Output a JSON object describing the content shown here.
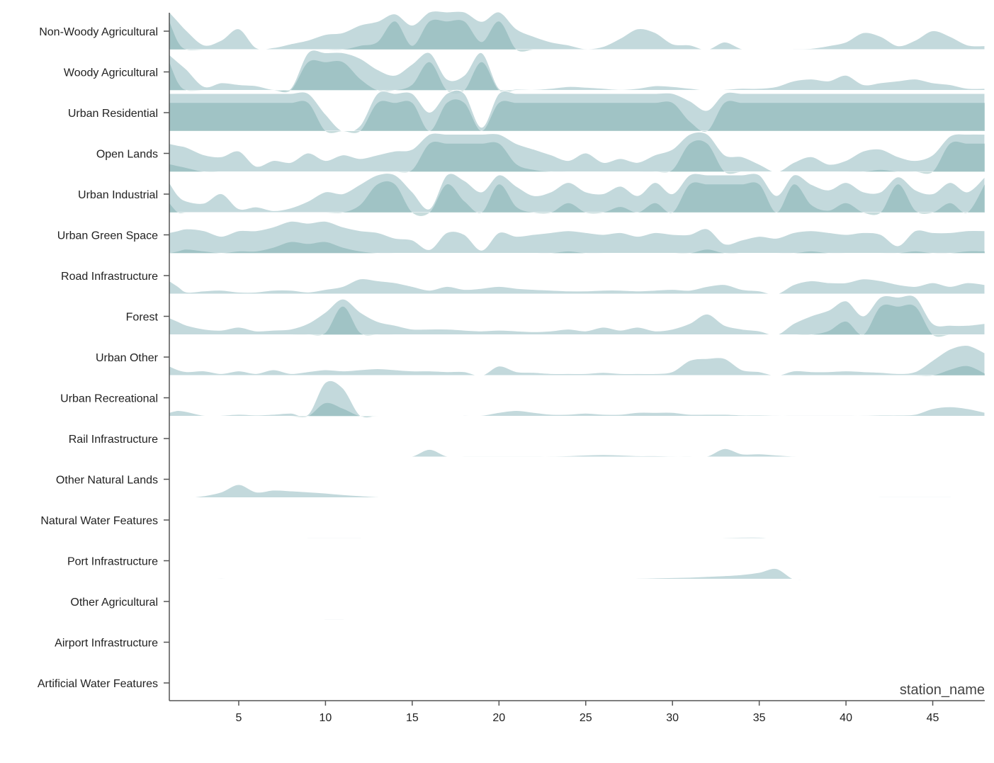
{
  "chart_data": {
    "type": "area",
    "subtype": "ridgeline",
    "title": "",
    "xlabel": "station_name",
    "ylabel": "",
    "xlim": [
      1,
      48
    ],
    "xticks": [
      5,
      10,
      15,
      20,
      25,
      30,
      35,
      40,
      45
    ],
    "categories": [
      "Non-Woody Agricultural",
      "Woody Agricultural",
      "Urban Residential",
      "Open Lands",
      "Urban Industrial",
      "Urban Green Space",
      "Road Infrastructure",
      "Forest",
      "Urban Other",
      "Urban Recreational",
      "Rail Infrastructure",
      "Other Natural Lands",
      "Natural Water Features",
      "Port Infrastructure",
      "Other Agricultural",
      "Airport Infrastructure",
      "Artificial Water Features"
    ],
    "x": [
      1,
      1.5,
      2,
      3,
      4,
      5,
      6,
      7,
      8,
      9,
      10,
      11,
      12,
      13,
      14,
      15,
      16,
      17,
      18,
      19,
      20,
      21,
      22,
      23,
      24,
      25,
      26,
      27,
      28,
      29,
      30,
      31,
      32,
      33,
      34,
      35,
      36,
      37,
      38,
      39,
      40,
      41,
      42,
      43,
      44,
      45,
      46,
      47,
      48
    ],
    "series": [
      {
        "values": [
          1.0,
          0.75,
          0.5,
          0.12,
          0.25,
          0.55,
          0.05,
          0.05,
          0.15,
          0.25,
          0.4,
          0.45,
          0.65,
          0.75,
          0.95,
          0.65,
          1.0,
          1.0,
          1.0,
          0.75,
          1.0,
          0.55,
          0.35,
          0.2,
          0.12,
          0.02,
          0.08,
          0.3,
          0.55,
          0.45,
          0.15,
          0.12,
          0.0,
          0.2,
          0.02,
          0.0,
          0.0,
          0.02,
          0.03,
          0.1,
          0.2,
          0.45,
          0.35,
          0.1,
          0.25,
          0.5,
          0.35,
          0.12,
          0.1
        ]
      },
      {
        "values": [
          0.95,
          0.75,
          0.55,
          0.1,
          0.2,
          0.15,
          0.12,
          0.02,
          0.05,
          1.0,
          1.0,
          1.0,
          0.85,
          0.55,
          0.4,
          0.7,
          1.0,
          0.3,
          0.4,
          1.0,
          0.05,
          0.03,
          0.02,
          0.05,
          0.1,
          0.08,
          0.05,
          0.02,
          0.05,
          0.12,
          0.1,
          0.05,
          0.0,
          0.02,
          0.05,
          0.05,
          0.1,
          0.25,
          0.3,
          0.25,
          0.4,
          0.15,
          0.2,
          0.25,
          0.3,
          0.2,
          0.15,
          0.05,
          0.05
        ]
      },
      {
        "values": [
          1.0,
          1.0,
          1.0,
          1.0,
          1.0,
          1.0,
          1.0,
          1.0,
          1.0,
          1.0,
          0.45,
          0.0,
          0.15,
          1.0,
          1.0,
          1.0,
          0.5,
          1.0,
          1.0,
          0.1,
          1.0,
          1.0,
          1.0,
          1.0,
          1.0,
          1.0,
          1.0,
          1.0,
          1.0,
          1.0,
          1.0,
          0.8,
          0.55,
          1.0,
          1.0,
          1.0,
          1.0,
          1.0,
          1.0,
          1.0,
          1.0,
          1.0,
          1.0,
          1.0,
          1.0,
          1.0,
          1.0,
          1.0,
          1.0
        ]
      },
      {
        "values": [
          0.75,
          0.7,
          0.65,
          0.45,
          0.4,
          0.55,
          0.15,
          0.3,
          0.25,
          0.5,
          0.3,
          0.45,
          0.35,
          0.45,
          0.55,
          0.6,
          1.0,
          1.0,
          1.0,
          1.0,
          1.0,
          0.75,
          0.6,
          0.45,
          0.3,
          0.5,
          0.25,
          0.35,
          0.25,
          0.45,
          0.6,
          1.0,
          1.0,
          0.45,
          0.4,
          0.2,
          0.0,
          0.25,
          0.4,
          0.2,
          0.3,
          0.55,
          0.6,
          0.4,
          0.3,
          0.45,
          0.95,
          1.0,
          1.0
        ]
      },
      {
        "values": [
          0.8,
          0.45,
          0.3,
          0.25,
          0.5,
          0.1,
          0.15,
          0.05,
          0.12,
          0.3,
          0.55,
          0.5,
          0.75,
          1.0,
          1.0,
          0.55,
          0.1,
          1.0,
          0.85,
          0.55,
          1.0,
          0.7,
          0.45,
          0.55,
          0.8,
          0.55,
          0.5,
          0.7,
          0.45,
          0.8,
          0.5,
          1.0,
          1.0,
          1.0,
          1.0,
          1.0,
          0.45,
          1.0,
          0.75,
          0.6,
          0.8,
          0.55,
          0.55,
          0.95,
          0.6,
          0.5,
          0.8,
          0.55,
          0.95
        ]
      },
      {
        "values": [
          0.55,
          0.6,
          0.65,
          0.6,
          0.45,
          0.6,
          0.6,
          0.7,
          0.85,
          0.8,
          0.85,
          0.7,
          0.6,
          0.55,
          0.4,
          0.35,
          0.1,
          0.55,
          0.5,
          0.08,
          0.55,
          0.45,
          0.5,
          0.55,
          0.6,
          0.55,
          0.5,
          0.55,
          0.45,
          0.55,
          0.5,
          0.5,
          0.65,
          0.25,
          0.35,
          0.45,
          0.4,
          0.55,
          0.6,
          0.55,
          0.5,
          0.55,
          0.5,
          0.2,
          0.6,
          0.55,
          0.55,
          0.6,
          0.6
        ]
      },
      {
        "values": [
          0.35,
          0.2,
          0.05,
          0.08,
          0.1,
          0.05,
          0.05,
          0.1,
          0.1,
          0.05,
          0.12,
          0.2,
          0.4,
          0.35,
          0.3,
          0.2,
          0.1,
          0.2,
          0.12,
          0.15,
          0.2,
          0.15,
          0.12,
          0.1,
          0.08,
          0.08,
          0.1,
          0.1,
          0.08,
          0.1,
          0.12,
          0.1,
          0.2,
          0.25,
          0.12,
          0.08,
          0.0,
          0.25,
          0.35,
          0.3,
          0.3,
          0.4,
          0.35,
          0.25,
          0.2,
          0.3,
          0.2,
          0.3,
          0.25
        ]
      },
      {
        "values": [
          0.45,
          0.35,
          0.25,
          0.15,
          0.12,
          0.2,
          0.1,
          0.12,
          0.15,
          0.3,
          0.6,
          0.95,
          0.6,
          0.35,
          0.25,
          0.15,
          0.15,
          0.15,
          0.12,
          0.1,
          0.12,
          0.1,
          0.08,
          0.1,
          0.15,
          0.1,
          0.2,
          0.12,
          0.2,
          0.1,
          0.15,
          0.3,
          0.55,
          0.25,
          0.15,
          0.1,
          0.0,
          0.3,
          0.5,
          0.65,
          0.9,
          0.5,
          1.0,
          1.0,
          1.0,
          0.3,
          0.25,
          0.25,
          0.3
        ]
      },
      {
        "values": [
          0.25,
          0.15,
          0.1,
          0.12,
          0.05,
          0.12,
          0.05,
          0.15,
          0.05,
          0.1,
          0.15,
          0.12,
          0.15,
          0.18,
          0.15,
          0.12,
          0.12,
          0.1,
          0.1,
          0.0,
          0.25,
          0.1,
          0.08,
          0.05,
          0.05,
          0.05,
          0.08,
          0.05,
          0.05,
          0.05,
          0.1,
          0.4,
          0.45,
          0.45,
          0.15,
          0.1,
          0.0,
          0.12,
          0.1,
          0.1,
          0.12,
          0.1,
          0.08,
          0.05,
          0.1,
          0.4,
          0.7,
          0.8,
          0.6
        ]
      },
      {
        "values": [
          0.1,
          0.15,
          0.12,
          0.02,
          0.02,
          0.05,
          0.03,
          0.05,
          0.08,
          0.05,
          0.9,
          0.75,
          0.02,
          0.0,
          0.0,
          0.0,
          0.0,
          0.0,
          0.02,
          0.02,
          0.1,
          0.15,
          0.1,
          0.05,
          0.05,
          0.08,
          0.05,
          0.05,
          0.1,
          0.1,
          0.1,
          0.05,
          0.05,
          0.05,
          0.03,
          0.03,
          0.02,
          0.02,
          0.02,
          0.02,
          0.02,
          0.02,
          0.03,
          0.03,
          0.05,
          0.2,
          0.25,
          0.2,
          0.1
        ]
      },
      {
        "values": [
          0.01,
          0.01,
          0.01,
          0.01,
          0.01,
          0.01,
          0.01,
          0.01,
          0.01,
          0.01,
          0.01,
          0.01,
          0.01,
          0.01,
          0.01,
          0.02,
          0.2,
          0.02,
          0.02,
          0.02,
          0.02,
          0.02,
          0.02,
          0.02,
          0.03,
          0.05,
          0.06,
          0.05,
          0.03,
          0.03,
          0.02,
          0.02,
          0.02,
          0.22,
          0.08,
          0.08,
          0.05,
          0.02,
          0.01,
          0.01,
          0.01,
          0.01,
          0.01,
          0.01,
          0.01,
          0.01,
          0.01,
          0.01,
          0.01
        ]
      },
      {
        "values": [
          0.0,
          0.0,
          0.0,
          0.05,
          0.15,
          0.35,
          0.15,
          0.2,
          0.18,
          0.15,
          0.12,
          0.08,
          0.05,
          0.02,
          0.01,
          0.01,
          0.01,
          0.01,
          0.01,
          0.01,
          0.01,
          0.01,
          0.01,
          0.01,
          0.01,
          0.01,
          0.01,
          0.01,
          0.01,
          0.01,
          0.01,
          0.01,
          0.01,
          0.01,
          0.01,
          0.01,
          0.01,
          0.01,
          0.01,
          0.01,
          0.01,
          0.01,
          0.02,
          0.02,
          0.02,
          0.02,
          0.02,
          0.0,
          0.0
        ]
      },
      {
        "values": [
          0.0,
          0.0,
          0.0,
          0.0,
          0.0,
          0.0,
          0.0,
          0.0,
          0.0,
          0.02,
          0.02,
          0.02,
          0.02,
          0.0,
          0.0,
          0.0,
          0.0,
          0.0,
          0.0,
          0.0,
          0.0,
          0.0,
          0.0,
          0.0,
          0.0,
          0.0,
          0.0,
          0.0,
          0.0,
          0.0,
          0.0,
          0.0,
          0.0,
          0.02,
          0.03,
          0.03,
          0.0,
          0.0,
          0.0,
          0.0,
          0.0,
          0.0,
          0.0,
          0.0,
          0.0,
          0.0,
          0.0,
          0.0,
          0.0
        ]
      },
      {
        "values": [
          0.0,
          0.0,
          0.0,
          0.01,
          0.02,
          0.01,
          0.01,
          0.01,
          0.01,
          0.01,
          0.01,
          0.01,
          0.01,
          0.01,
          0.01,
          0.01,
          0.01,
          0.01,
          0.01,
          0.01,
          0.01,
          0.01,
          0.01,
          0.01,
          0.01,
          0.01,
          0.01,
          0.01,
          0.02,
          0.03,
          0.04,
          0.05,
          0.07,
          0.09,
          0.12,
          0.18,
          0.28,
          0.0,
          0.0,
          0.0,
          0.0,
          0.0,
          0.0,
          0.0,
          0.0,
          0.0,
          0.0,
          0.0,
          0.0
        ]
      },
      {
        "values": [
          0.0,
          0.0,
          0.0,
          0.0,
          0.0,
          0.0,
          0.0,
          0.0,
          0.0,
          0.0,
          0.02,
          0.02,
          0.0,
          0.0,
          0.0,
          0.0,
          0.0,
          0.0,
          0.0,
          0.0,
          0.0,
          0.0,
          0.0,
          0.0,
          0.0,
          0.0,
          0.0,
          0.0,
          0.0,
          0.0,
          0.0,
          0.0,
          0.0,
          0.0,
          0.0,
          0.0,
          0.0,
          0.0,
          0.0,
          0.0,
          0.0,
          0.0,
          0.0,
          0.0,
          0.0,
          0.0,
          0.0,
          0.0,
          0.0
        ]
      },
      {
        "values": [
          0.0,
          0.0,
          0.0,
          0.0,
          0.0,
          0.0,
          0.0,
          0.0,
          0.0,
          0.0,
          0.0,
          0.0,
          0.0,
          0.0,
          0.0,
          0.0,
          0.0,
          0.0,
          0.0,
          0.0,
          0.0,
          0.0,
          0.0,
          0.0,
          0.0,
          0.0,
          0.0,
          0.0,
          0.0,
          0.0,
          0.0,
          0.0,
          0.0,
          0.0,
          0.0,
          0.0,
          0.0,
          0.0,
          0.0,
          0.0,
          0.0,
          0.0,
          0.0,
          0.0,
          0.0,
          0.0,
          0.0,
          0.0,
          0.0
        ]
      },
      {
        "values": [
          0.0,
          0.0,
          0.0,
          0.0,
          0.0,
          0.0,
          0.0,
          0.0,
          0.0,
          0.0,
          0.0,
          0.0,
          0.0,
          0.0,
          0.0,
          0.0,
          0.0,
          0.0,
          0.0,
          0.0,
          0.0,
          0.0,
          0.0,
          0.0,
          0.0,
          0.0,
          0.0,
          0.0,
          0.0,
          0.0,
          0.0,
          0.0,
          0.0,
          0.0,
          0.0,
          0.0,
          0.0,
          0.0,
          0.0,
          0.0,
          0.0,
          0.0,
          0.0,
          0.0,
          0.0,
          0.0,
          0.0,
          0.0,
          0.0
        ]
      }
    ],
    "colors": {
      "fill": "#b9d2d6",
      "fill_dark": "#5e9a9c",
      "axis": "#555555"
    },
    "grid": false,
    "legend": "none"
  }
}
